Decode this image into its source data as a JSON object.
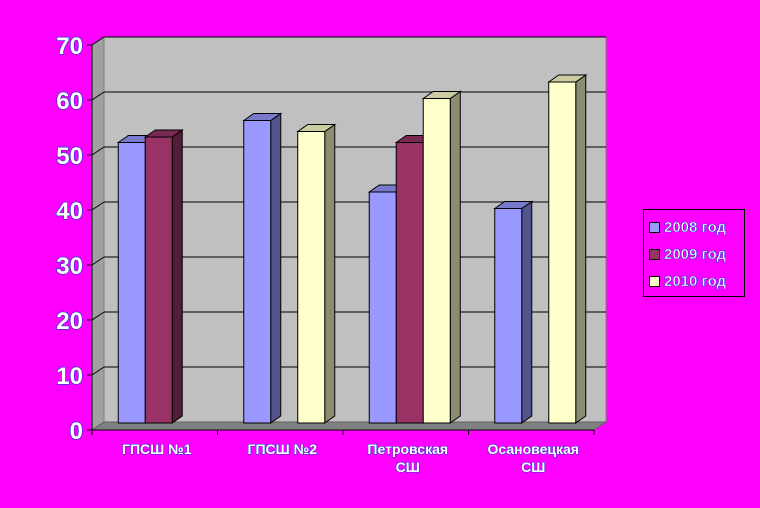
{
  "chart_data": {
    "type": "bar",
    "title": "",
    "xlabel": "",
    "ylabel": "",
    "categories": [
      [
        "ГПСШ №1"
      ],
      [
        "ГПСШ №2"
      ],
      [
        "Петровская",
        "СШ"
      ],
      [
        "Осановецкая",
        "СШ"
      ]
    ],
    "series": [
      {
        "name": "2008 год",
        "color": "#9999ff",
        "values": [
          51,
          55,
          42,
          39
        ]
      },
      {
        "name": "2009 год",
        "color": "#993366",
        "values": [
          52,
          null,
          51,
          null
        ]
      },
      {
        "name": "2010 год",
        "color": "#ffffcc",
        "values": [
          null,
          53,
          59,
          62
        ]
      }
    ],
    "ylim": [
      0,
      70
    ],
    "yticks": [
      "0",
      "10",
      "20",
      "30",
      "40",
      "50",
      "60",
      "70"
    ],
    "grid": true,
    "legend_position": "right",
    "colors": {
      "background": "#ff00ff",
      "plot_wall": "#c0c0c0",
      "floor": "#808080"
    }
  }
}
